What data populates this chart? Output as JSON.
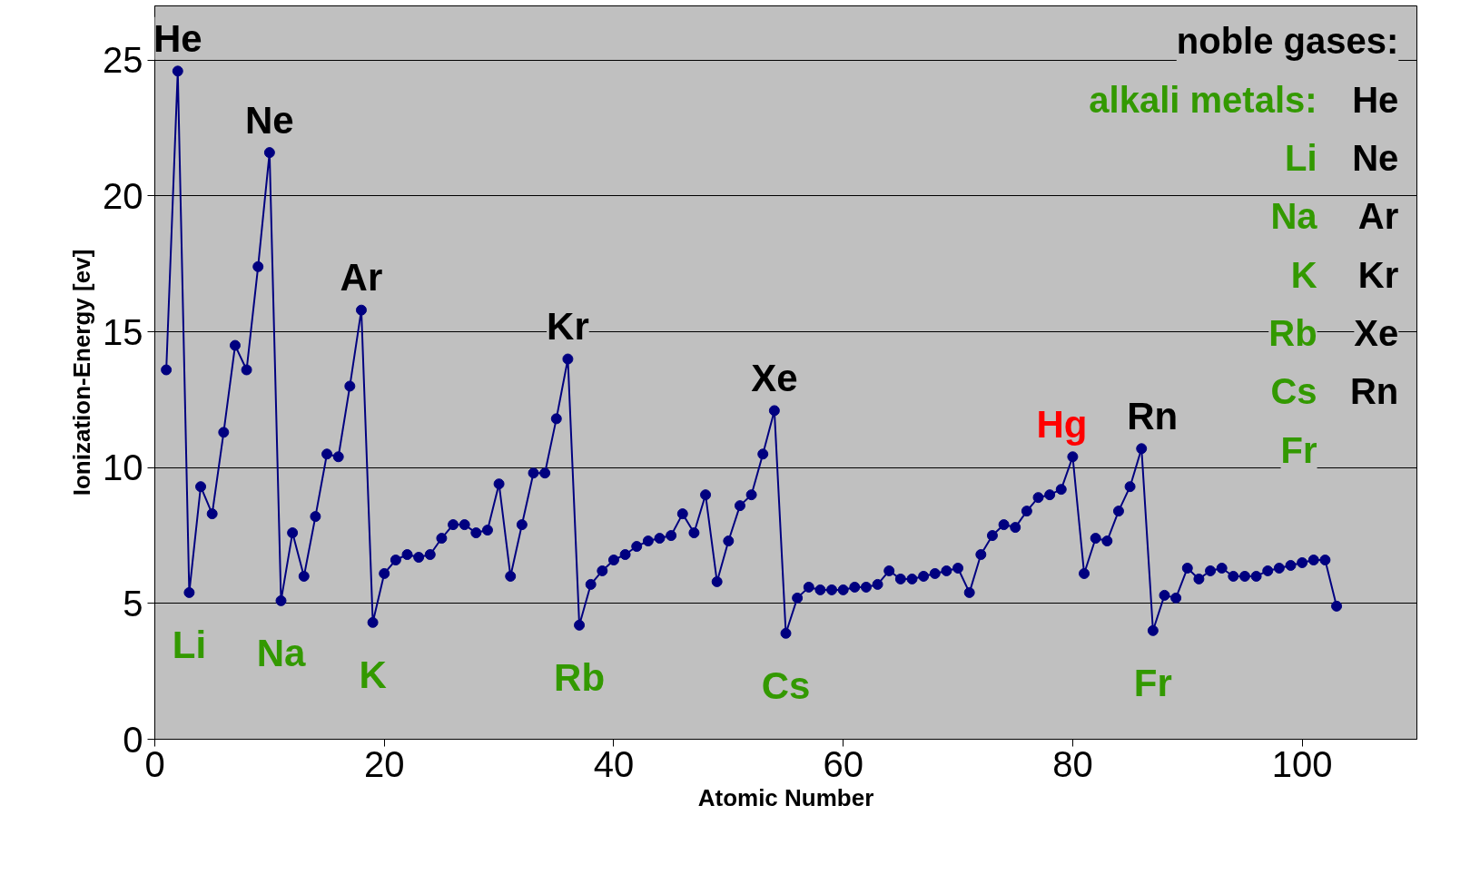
{
  "chart_data": {
    "type": "line",
    "xlabel": "Atomic Number",
    "ylabel": "Ionization-Energy [ev]",
    "x": [
      1,
      2,
      3,
      4,
      5,
      6,
      7,
      8,
      9,
      10,
      11,
      12,
      13,
      14,
      15,
      16,
      17,
      18,
      19,
      20,
      21,
      22,
      23,
      24,
      25,
      26,
      27,
      28,
      29,
      30,
      31,
      32,
      33,
      34,
      35,
      36,
      37,
      38,
      39,
      40,
      41,
      42,
      43,
      44,
      45,
      46,
      47,
      48,
      49,
      50,
      51,
      52,
      53,
      54,
      55,
      56,
      57,
      58,
      59,
      60,
      61,
      62,
      63,
      64,
      65,
      66,
      67,
      68,
      69,
      70,
      71,
      72,
      73,
      74,
      75,
      76,
      77,
      78,
      79,
      80,
      81,
      82,
      83,
      84,
      85,
      86,
      87,
      88,
      89,
      90,
      91,
      92,
      93,
      94,
      95,
      96,
      97,
      98,
      99,
      100,
      101,
      102,
      103
    ],
    "series": [
      {
        "color": "#000080",
        "values": [
          13.6,
          24.6,
          5.4,
          9.3,
          8.3,
          11.3,
          14.5,
          13.6,
          17.4,
          21.6,
          5.1,
          7.6,
          6.0,
          8.2,
          10.5,
          10.4,
          13.0,
          15.8,
          4.3,
          6.1,
          6.6,
          6.8,
          6.7,
          6.8,
          7.4,
          7.9,
          7.9,
          7.6,
          7.7,
          9.4,
          6.0,
          7.9,
          9.8,
          9.8,
          11.8,
          14.0,
          4.2,
          5.7,
          6.2,
          6.6,
          6.8,
          7.1,
          7.3,
          7.4,
          7.5,
          8.3,
          7.6,
          9.0,
          5.8,
          7.3,
          8.6,
          9.0,
          10.5,
          12.1,
          3.9,
          5.2,
          5.6,
          5.5,
          5.5,
          5.5,
          5.6,
          5.6,
          5.7,
          6.2,
          5.9,
          5.9,
          6.0,
          6.1,
          6.2,
          6.3,
          5.4,
          6.8,
          7.5,
          7.9,
          7.8,
          8.4,
          8.9,
          9.0,
          9.2,
          10.4,
          6.1,
          7.4,
          7.3,
          8.4,
          9.3,
          10.7,
          4.0,
          5.3,
          5.2,
          6.3,
          5.9,
          6.2,
          6.3,
          6.0,
          6.0,
          6.0,
          6.2,
          6.3,
          6.4,
          6.5,
          6.6,
          6.6,
          4.9
        ]
      }
    ],
    "marker": "circle",
    "line_style": "solid",
    "grid": "y",
    "xlim": [
      0,
      110
    ],
    "xticks": [
      0,
      20,
      40,
      60,
      80,
      100
    ],
    "ylim": [
      0,
      27
    ],
    "yticks": [
      0,
      5,
      10,
      15,
      20,
      25
    ],
    "annotations": [
      {
        "text": "He",
        "x": 2,
        "y": 24.6
      },
      {
        "text": "Ne",
        "x": 10,
        "y": 21.6
      },
      {
        "text": "Ar",
        "x": 18,
        "y": 15.8
      },
      {
        "text": "Kr",
        "x": 36,
        "y": 14.0
      },
      {
        "text": "Xe",
        "x": 54,
        "y": 12.1
      },
      {
        "text": "Hg",
        "x": 80,
        "y": 10.4
      },
      {
        "text": "Rn",
        "x": 86,
        "y": 10.7
      },
      {
        "text": "Li",
        "x": 3,
        "y": 5.4
      },
      {
        "text": "Na",
        "x": 11,
        "y": 5.1
      },
      {
        "text": "K",
        "x": 19,
        "y": 4.3
      },
      {
        "text": "Rb",
        "x": 37,
        "y": 4.2
      },
      {
        "text": "Cs",
        "x": 55,
        "y": 3.9
      },
      {
        "text": "Fr",
        "x": 87,
        "y": 4.0
      },
      "noble gases:",
      "He",
      "Ne",
      "Ar",
      "Kr",
      "Xe",
      "Rn",
      "alkali metals:",
      "Li",
      "Na",
      "K",
      "Rb",
      "Cs",
      "Fr"
    ]
  }
}
